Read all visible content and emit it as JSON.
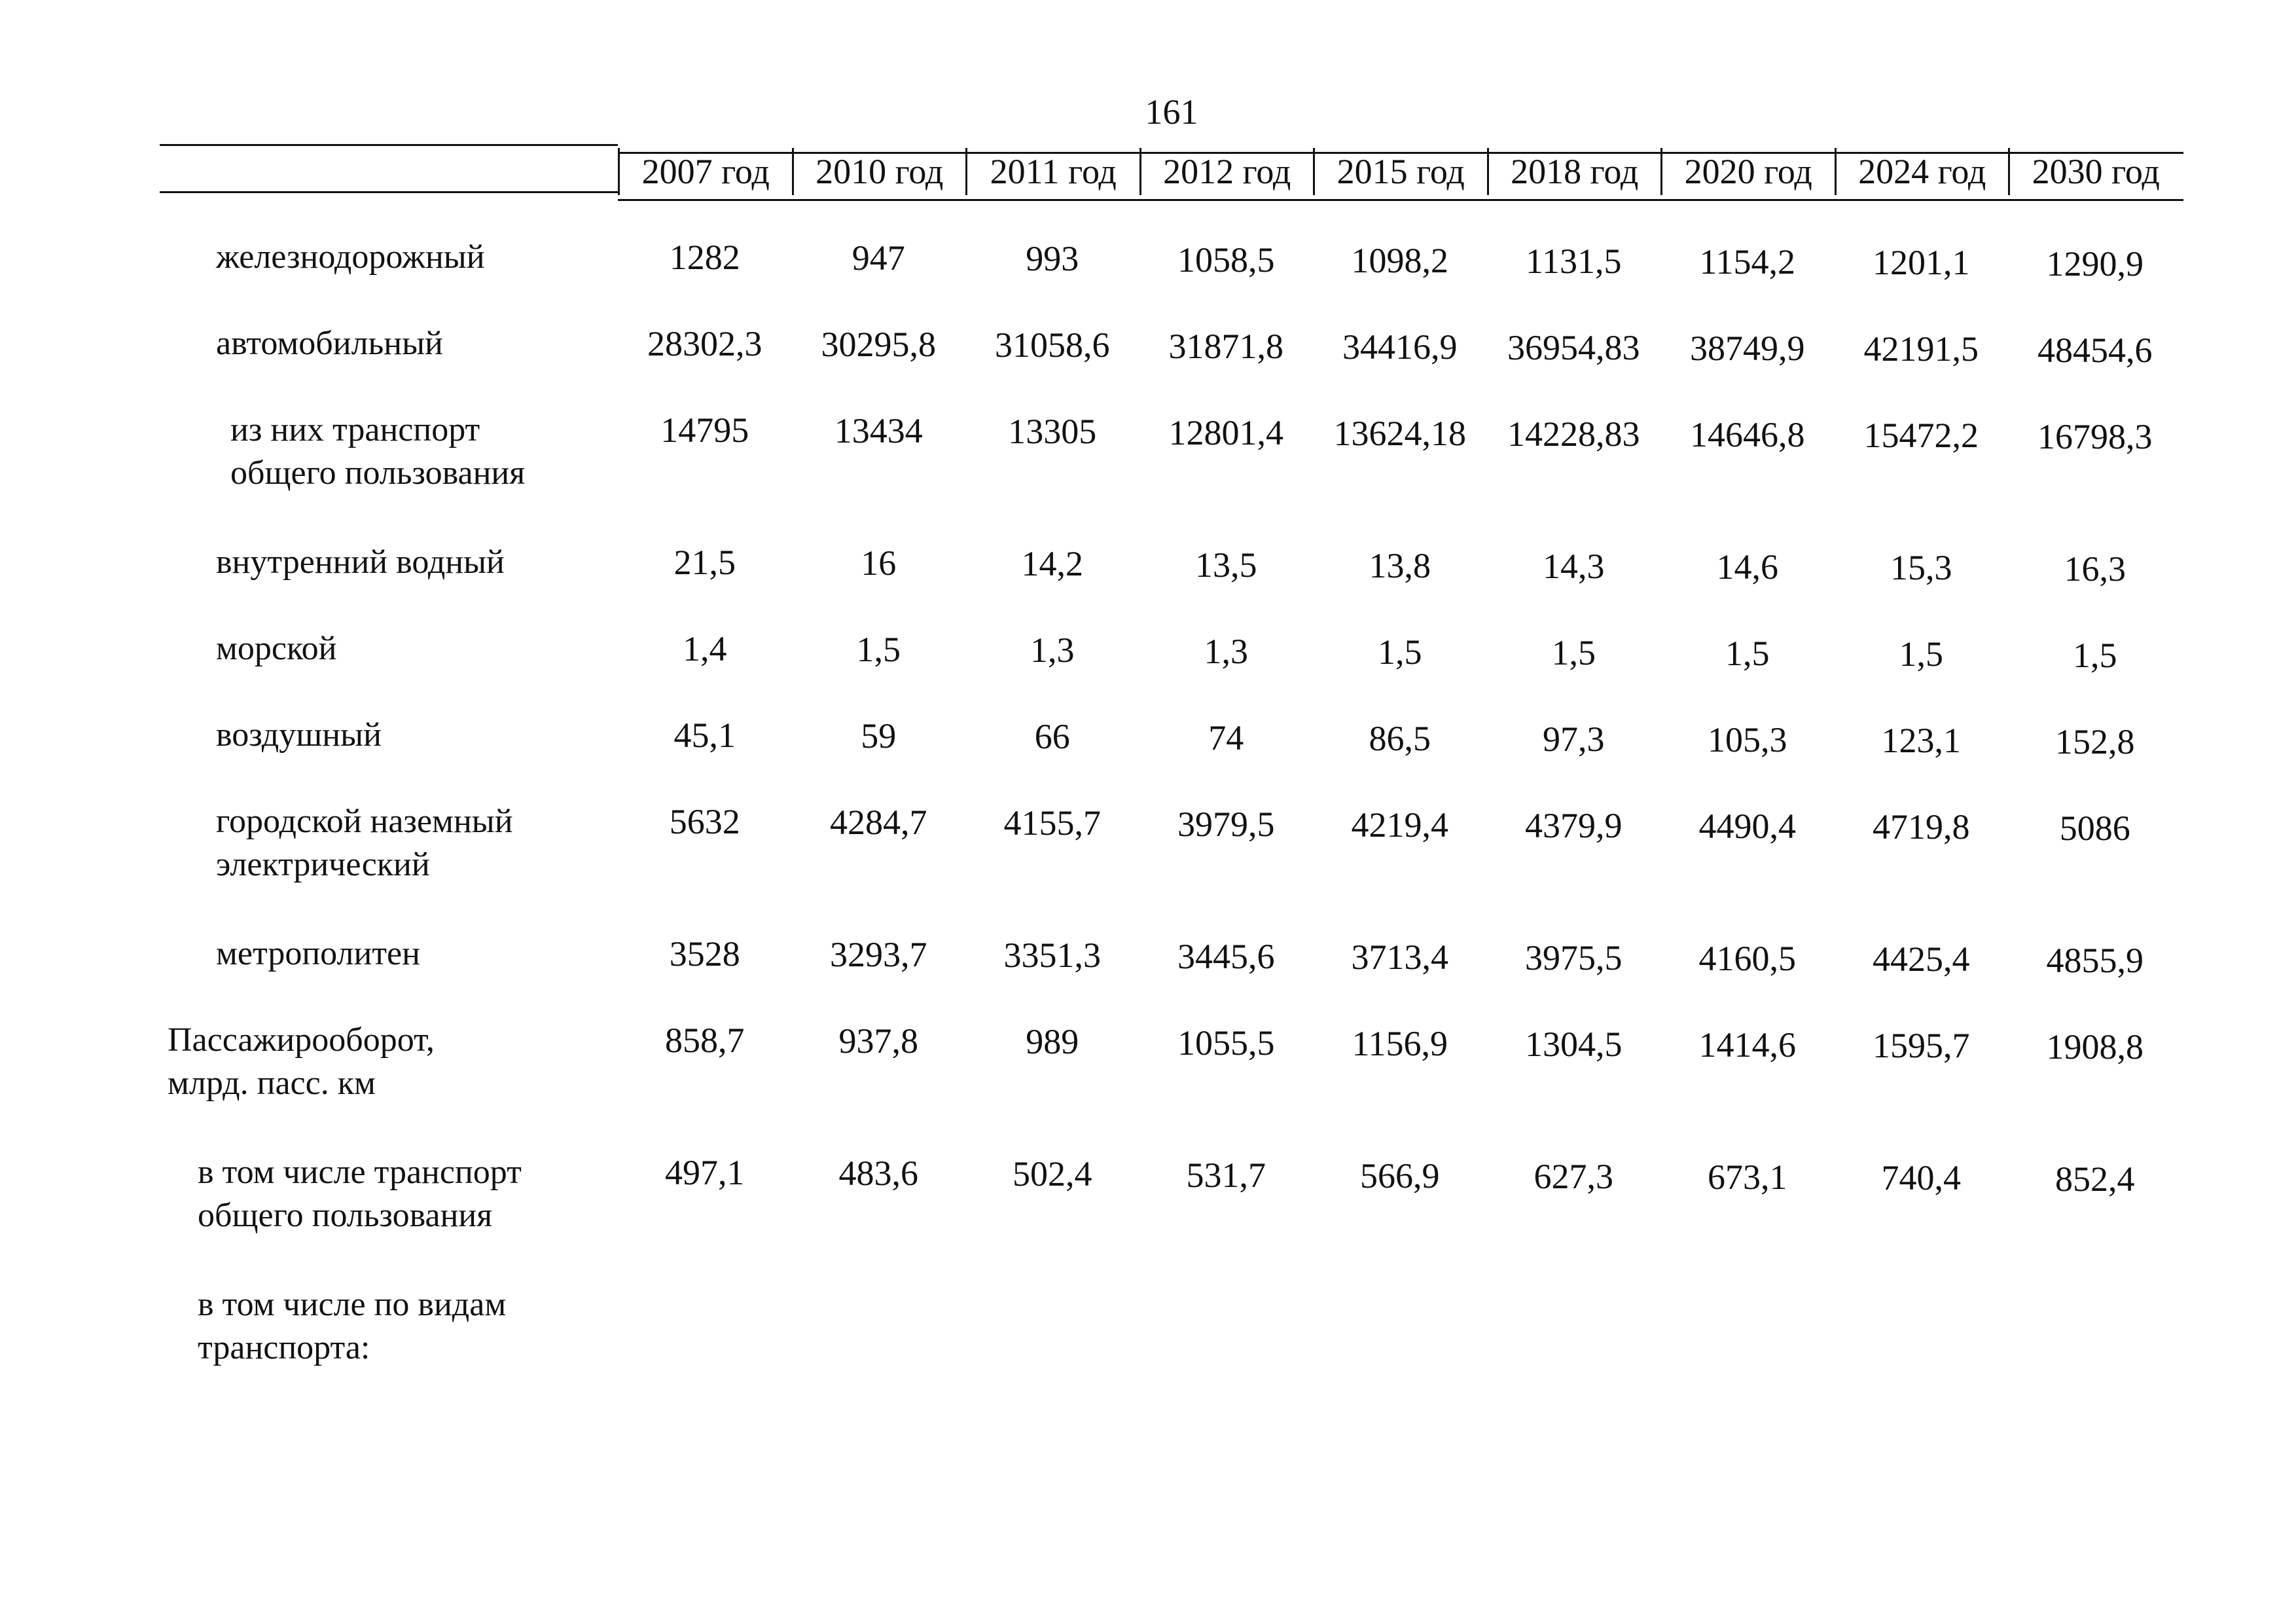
{
  "page_number": "161",
  "table": {
    "years": [
      "2007 год",
      "2010 год",
      "2011 год",
      "2012 год",
      "2015 год",
      "2018 год",
      "2020 год",
      "2024 год",
      "2030 год"
    ],
    "rows": [
      {
        "label": [
          "железнодорожный"
        ],
        "values": [
          "1282",
          "947",
          "993",
          "1058,5",
          "1098,2",
          "1131,5",
          "1154,2",
          "1201,1",
          "1290,9"
        ]
      },
      {
        "label": [
          "автомобильный"
        ],
        "values": [
          "28302,3",
          "30295,8",
          "31058,6",
          "31871,8",
          "34416,9",
          "36954,83",
          "38749,9",
          "42191,5",
          "48454,6"
        ]
      },
      {
        "label": [
          "из них транспорт",
          "общего пользования"
        ],
        "values": [
          "14795",
          "13434",
          "13305",
          "12801,4",
          "13624,18",
          "14228,83",
          "14646,8",
          "15472,2",
          "16798,3"
        ]
      },
      {
        "label": [
          "внутренний водный"
        ],
        "values": [
          "21,5",
          "16",
          "14,2",
          "13,5",
          "13,8",
          "14,3",
          "14,6",
          "15,3",
          "16,3"
        ]
      },
      {
        "label": [
          "морской"
        ],
        "values": [
          "1,4",
          "1,5",
          "1,3",
          "1,3",
          "1,5",
          "1,5",
          "1,5",
          "1,5",
          "1,5"
        ]
      },
      {
        "label": [
          "воздушный"
        ],
        "values": [
          "45,1",
          "59",
          "66",
          "74",
          "86,5",
          "97,3",
          "105,3",
          "123,1",
          "152,8"
        ]
      },
      {
        "label": [
          "городской наземный",
          "электрический"
        ],
        "values": [
          "5632",
          "4284,7",
          "4155,7",
          "3979,5",
          "4219,4",
          "4379,9",
          "4490,4",
          "4719,8",
          "5086"
        ]
      },
      {
        "label": [
          "метрополитен"
        ],
        "values": [
          "3528",
          "3293,7",
          "3351,3",
          "3445,6",
          "3713,4",
          "3975,5",
          "4160,5",
          "4425,4",
          "4855,9"
        ]
      },
      {
        "label": [
          "Пассажирооборот,",
          "млрд. пасс. км"
        ],
        "values": [
          "858,7",
          "937,8",
          "989",
          "1055,5",
          "1156,9",
          "1304,5",
          "1414,6",
          "1595,7",
          "1908,8"
        ]
      },
      {
        "label": [
          "в том числе транспорт",
          "общего пользования"
        ],
        "values": [
          "497,1",
          "483,6",
          "502,4",
          "531,7",
          "566,9",
          "627,3",
          "673,1",
          "740,4",
          "852,4"
        ]
      },
      {
        "label": [
          "в том числе по видам",
          "транспорта:"
        ],
        "values": []
      }
    ]
  }
}
